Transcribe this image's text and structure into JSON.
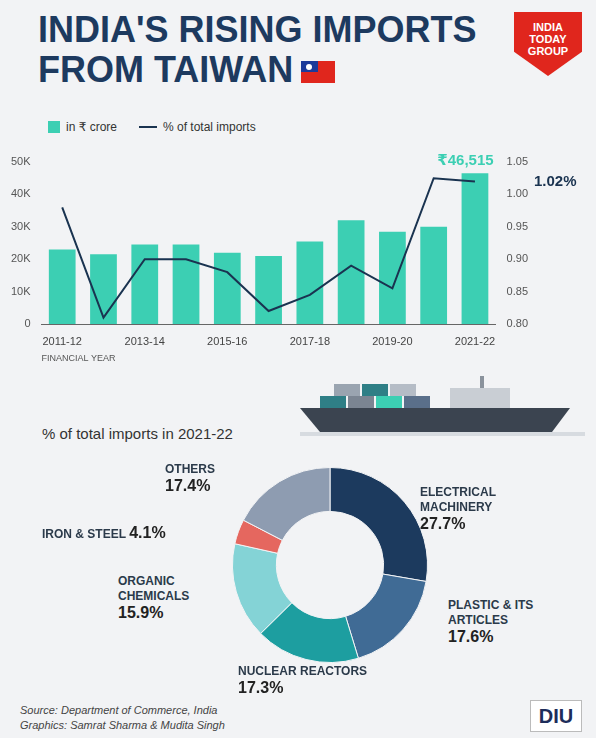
{
  "title": "INDIA'S RISING IMPORTS FROM TAIWAN",
  "logo": "INDIA TODAY GROUP",
  "source": "Source: Department of Commerce, India",
  "credit": "Graphics: Samrat Sharma & Mudita Singh",
  "badge": "DIU",
  "chart_data": [
    {
      "type": "bar",
      "legend": "upper left",
      "grid": false,
      "x_label": "FINANCIAL YEAR",
      "categories": [
        "2011-12",
        null,
        "2013-14",
        null,
        "2015-16",
        null,
        "2017-18",
        null,
        "2019-20",
        null,
        "2021-22"
      ],
      "ylim": [
        0,
        50000
      ],
      "yticks": [
        0,
        {
          "value": 10000,
          "label": "10K"
        },
        {
          "value": 20000,
          "label": "20K"
        },
        {
          "value": 30000,
          "label": "30K"
        },
        {
          "value": 40000,
          "label": "40K"
        },
        {
          "value": 50000,
          "label": "50K"
        }
      ],
      "y2lim": [
        0.8,
        1.05
      ],
      "y2ticks": [
        {
          "value": 0.8,
          "label": "0.80"
        },
        0.85,
        {
          "value": 0.9,
          "label": "0.90"
        },
        0.95,
        {
          "value": 1.0,
          "label": "1.00"
        },
        1.05
      ],
      "series": [
        {
          "name": "in ₹ crore",
          "type": "bar",
          "color": "#3ccfb3",
          "values": [
            23000,
            21500,
            24500,
            24500,
            22000,
            21000,
            25500,
            32000,
            28500,
            30000,
            46515
          ],
          "value_labels": [
            null,
            null,
            null,
            null,
            null,
            null,
            null,
            null,
            null,
            null,
            "₹46,515"
          ]
        },
        {
          "name": "% of total imports",
          "type": "line",
          "axis": "y2",
          "color": "#1a3350",
          "values": [
            0.98,
            0.81,
            0.9,
            0.9,
            0.88,
            0.82,
            0.845,
            0.89,
            0.855,
            1.025,
            1.02
          ],
          "value_labels": [
            null,
            null,
            null,
            null,
            null,
            null,
            null,
            null,
            null,
            null,
            "1.02%"
          ]
        }
      ]
    },
    {
      "type": "doughnut",
      "title": "% of total imports in 2021-22",
      "categories": [
        "ELECTRICAL MACHINERY",
        "PLASTIC & ITS ARTICLES",
        "NUCLEAR REACTORS",
        "ORGANIC CHEMICALS",
        "IRON & STEEL",
        "OTHERS"
      ],
      "values": [
        27.7,
        17.6,
        17.3,
        15.9,
        4.1,
        17.4
      ],
      "value_labels": [
        "27.7%",
        "17.6%",
        "17.3%",
        "15.9%",
        "4.1%",
        "17.4%"
      ],
      "colors": [
        "#1c3a5e",
        "#406b95",
        "#1d9ea0",
        "#84d3d6",
        "#e5675f",
        "#8e9cb1"
      ]
    }
  ]
}
